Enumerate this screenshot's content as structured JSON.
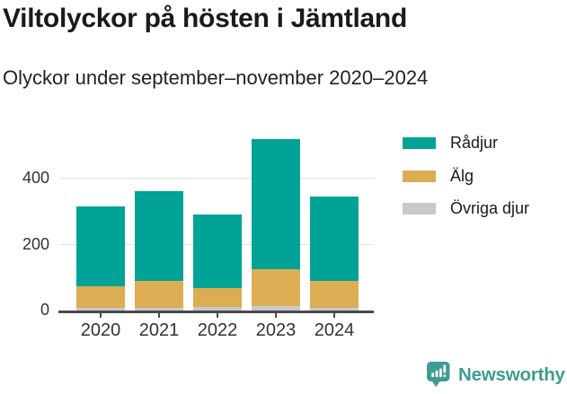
{
  "header": {
    "title": "Viltolyckor på hösten i Jämtland",
    "subtitle": "Olyckor under september–november 2020–2024"
  },
  "chart_data": {
    "type": "bar",
    "stacked": true,
    "title": "Viltolyckor på hösten i Jämtland",
    "subtitle": "Olyckor under september–november 2020–2024",
    "categories": [
      "2020",
      "2021",
      "2022",
      "2023",
      "2024"
    ],
    "series": [
      {
        "name": "Rådjur",
        "color": "#00A396",
        "values": [
          241,
          272,
          223,
          394,
          257
        ]
      },
      {
        "name": "Älg",
        "color": "#DCAD53",
        "values": [
          67,
          82,
          57,
          110,
          82
        ]
      },
      {
        "name": "Övriga djur",
        "color": "#C9C9CD",
        "values": [
          7,
          9,
          11,
          15,
          7
        ]
      }
    ],
    "totals": [
      315,
      363,
      291,
      519,
      346
    ],
    "stack_order_bottom_to_top": [
      "Övriga djur",
      "Älg",
      "Rådjur"
    ],
    "xlabel": "",
    "ylabel": "",
    "ylim": [
      0,
      540
    ],
    "yticks": [
      0,
      200,
      400
    ],
    "grid": "horizontal",
    "legend_position": "right"
  },
  "footer": {
    "brand": "Newsworthy",
    "logo_icon": "bar-chart-speech-bubble-icon"
  },
  "colors": {
    "brand": "#3E9C90",
    "axis": "#4A4A4B",
    "grid": "#E2E2E2",
    "text": "#1A1A1A"
  }
}
